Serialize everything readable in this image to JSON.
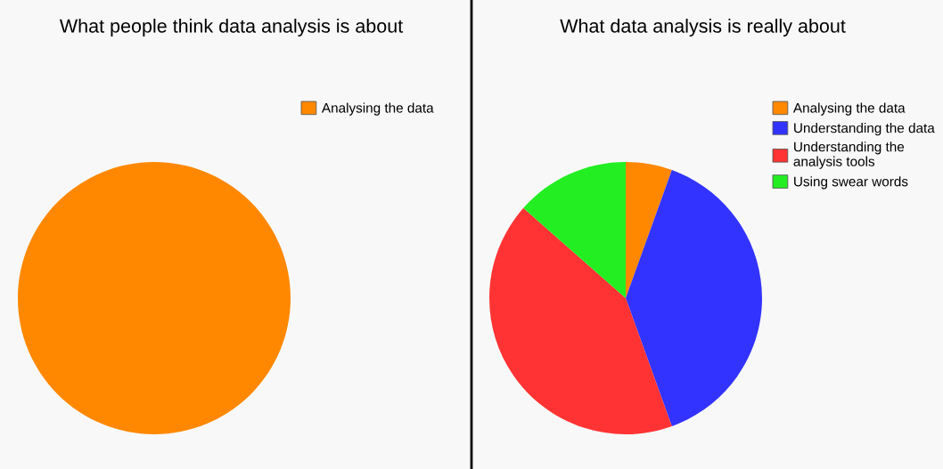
{
  "chart_data": [
    {
      "type": "pie",
      "title": "What people think data analysis is about",
      "categories": [
        "Analysing the data"
      ],
      "values": [
        100
      ],
      "colors": [
        "#ff8800"
      ],
      "legend": "top right"
    },
    {
      "type": "pie",
      "title": "What data analysis is really about",
      "categories": [
        "Analysing the data",
        "Understanding the data",
        "Understanding the\nanalysis tools",
        "Using swear words"
      ],
      "values": [
        5.5,
        39,
        42,
        13.5
      ],
      "colors": [
        "#ff8800",
        "#3333ff",
        "#ff3333",
        "#22ee22"
      ],
      "legend": "top right"
    }
  ]
}
